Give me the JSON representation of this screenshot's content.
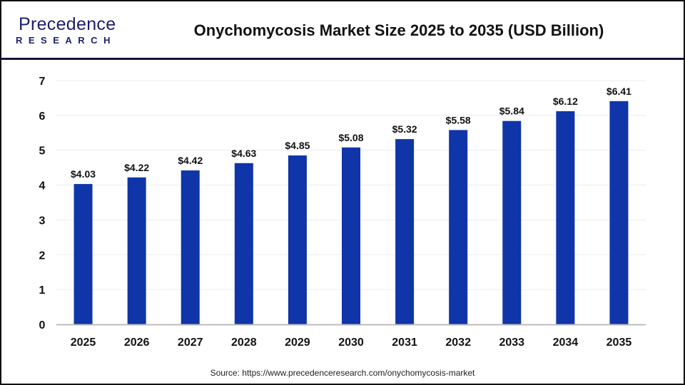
{
  "logo": {
    "line1": "Precedence",
    "line2": "RESEARCH"
  },
  "title": "Onychomycosis Market Size 2025 to 2035 (USD Billion)",
  "source": "Source: https://www.precedenceresearch.com/onychomycosis-market",
  "colors": {
    "bar": "#0f35a8",
    "header_line": "#14143c",
    "grid": "#ececec",
    "axis": "#bdbdbd"
  },
  "chart_data": {
    "type": "bar",
    "title": "Onychomycosis Market Size 2025 to 2035 (USD Billion)",
    "xlabel": "",
    "ylabel": "",
    "categories": [
      "2025",
      "2026",
      "2027",
      "2028",
      "2029",
      "2030",
      "2031",
      "2032",
      "2033",
      "2034",
      "2035"
    ],
    "values": [
      4.03,
      4.22,
      4.42,
      4.63,
      4.85,
      5.08,
      5.32,
      5.58,
      5.84,
      6.12,
      6.41
    ],
    "data_labels": [
      "$4.03",
      "$4.22",
      "$4.42",
      "$4.63",
      "$4.85",
      "$5.08",
      "$5.32",
      "$5.58",
      "$5.84",
      "$6.12",
      "$6.41"
    ],
    "yticks": [
      "0",
      "1",
      "2",
      "3",
      "4",
      "5",
      "6",
      "7"
    ],
    "ylim": [
      0,
      7
    ],
    "grid": true,
    "legend": "none"
  }
}
